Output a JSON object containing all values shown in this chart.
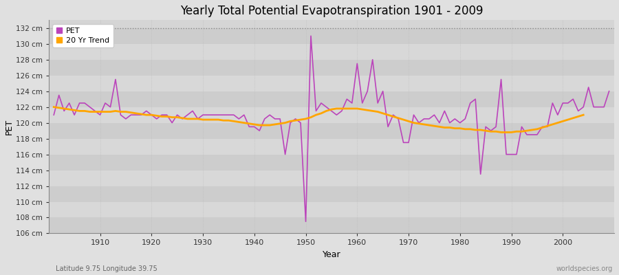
{
  "title": "Yearly Total Potential Evapotranspiration 1901 - 2009",
  "xlabel": "Year",
  "ylabel": "PET",
  "subtitle": "Latitude 9.75 Longitude 39.75",
  "watermark": "worldspecies.org",
  "ylim": [
    106,
    133
  ],
  "yticks": [
    106,
    108,
    110,
    112,
    114,
    116,
    118,
    120,
    122,
    124,
    126,
    128,
    130,
    132
  ],
  "xlim": [
    1900,
    2010
  ],
  "xticks": [
    1910,
    1920,
    1930,
    1940,
    1950,
    1960,
    1970,
    1980,
    1990,
    2000
  ],
  "pet_color": "#BB44BB",
  "trend_color": "#FFA500",
  "fig_bg": "#E8E8E8",
  "plot_bg": "#D8D8D8",
  "band_color_dark": "#CCCCCC",
  "band_color_light": "#E0E0E0",
  "grid_color": "#BBBBBB",
  "pet_label": "PET",
  "trend_label": "20 Yr Trend",
  "years": [
    1901,
    1902,
    1903,
    1904,
    1905,
    1906,
    1907,
    1908,
    1909,
    1910,
    1911,
    1912,
    1913,
    1914,
    1915,
    1916,
    1917,
    1918,
    1919,
    1920,
    1921,
    1922,
    1923,
    1924,
    1925,
    1926,
    1927,
    1928,
    1929,
    1930,
    1931,
    1932,
    1933,
    1934,
    1935,
    1936,
    1937,
    1938,
    1939,
    1940,
    1941,
    1942,
    1943,
    1944,
    1945,
    1946,
    1947,
    1948,
    1949,
    1950,
    1951,
    1952,
    1953,
    1954,
    1955,
    1956,
    1957,
    1958,
    1959,
    1960,
    1961,
    1962,
    1963,
    1964,
    1965,
    1966,
    1967,
    1968,
    1969,
    1970,
    1971,
    1972,
    1973,
    1974,
    1975,
    1976,
    1977,
    1978,
    1979,
    1980,
    1981,
    1982,
    1983,
    1984,
    1985,
    1986,
    1987,
    1988,
    1989,
    1990,
    1991,
    1992,
    1993,
    1994,
    1995,
    1996,
    1997,
    1998,
    1999,
    2000,
    2001,
    2002,
    2003,
    2004,
    2005,
    2006,
    2007,
    2008,
    2009
  ],
  "pet_values": [
    121.0,
    123.5,
    121.5,
    122.5,
    121.0,
    122.5,
    122.5,
    122.0,
    121.5,
    121.0,
    122.5,
    122.0,
    125.5,
    121.0,
    120.5,
    121.0,
    121.0,
    121.0,
    121.5,
    121.0,
    120.5,
    121.0,
    121.0,
    120.0,
    121.0,
    120.5,
    121.0,
    121.5,
    120.5,
    121.0,
    121.0,
    121.0,
    121.0,
    121.0,
    121.0,
    121.0,
    120.5,
    121.0,
    119.5,
    119.5,
    119.0,
    120.5,
    121.0,
    120.5,
    120.5,
    116.0,
    120.0,
    120.5,
    120.0,
    107.5,
    131.0,
    121.5,
    122.5,
    122.0,
    121.5,
    121.0,
    121.5,
    123.0,
    122.5,
    127.5,
    122.5,
    124.0,
    128.0,
    122.5,
    124.0,
    119.5,
    121.0,
    120.5,
    117.5,
    117.5,
    121.0,
    120.0,
    120.5,
    120.5,
    121.0,
    120.0,
    121.5,
    120.0,
    120.5,
    120.0,
    120.5,
    122.5,
    123.0,
    113.5,
    119.5,
    119.0,
    119.5,
    125.5,
    116.0,
    116.0,
    116.0,
    119.5,
    118.5,
    118.5,
    118.5,
    119.5,
    119.5,
    122.5,
    121.0,
    122.5,
    122.5,
    123.0,
    121.5,
    122.0,
    124.5,
    122.0,
    122.0,
    122.0,
    124.0
  ],
  "trend_values": [
    122.0,
    121.9,
    121.8,
    121.7,
    121.6,
    121.5,
    121.5,
    121.4,
    121.4,
    121.4,
    121.4,
    121.4,
    121.5,
    121.4,
    121.4,
    121.3,
    121.2,
    121.1,
    121.0,
    121.0,
    120.9,
    120.8,
    120.8,
    120.7,
    120.7,
    120.6,
    120.5,
    120.5,
    120.5,
    120.4,
    120.4,
    120.4,
    120.4,
    120.3,
    120.3,
    120.2,
    120.1,
    120.0,
    119.9,
    119.8,
    119.7,
    119.7,
    119.7,
    119.8,
    119.9,
    120.0,
    120.2,
    120.3,
    120.4,
    120.5,
    120.7,
    121.0,
    121.2,
    121.5,
    121.7,
    121.8,
    121.8,
    121.8,
    121.8,
    121.8,
    121.7,
    121.6,
    121.5,
    121.4,
    121.2,
    121.0,
    120.8,
    120.6,
    120.4,
    120.2,
    120.0,
    119.9,
    119.8,
    119.7,
    119.6,
    119.5,
    119.4,
    119.4,
    119.3,
    119.3,
    119.2,
    119.2,
    119.1,
    119.1,
    119.0,
    118.9,
    118.9,
    118.8,
    118.8,
    118.8,
    118.9,
    118.9,
    119.0,
    119.1,
    119.2,
    119.4,
    119.6,
    119.8,
    120.0,
    120.2,
    120.4,
    120.6,
    120.8,
    121.0,
    null,
    null,
    null,
    null,
    null
  ]
}
